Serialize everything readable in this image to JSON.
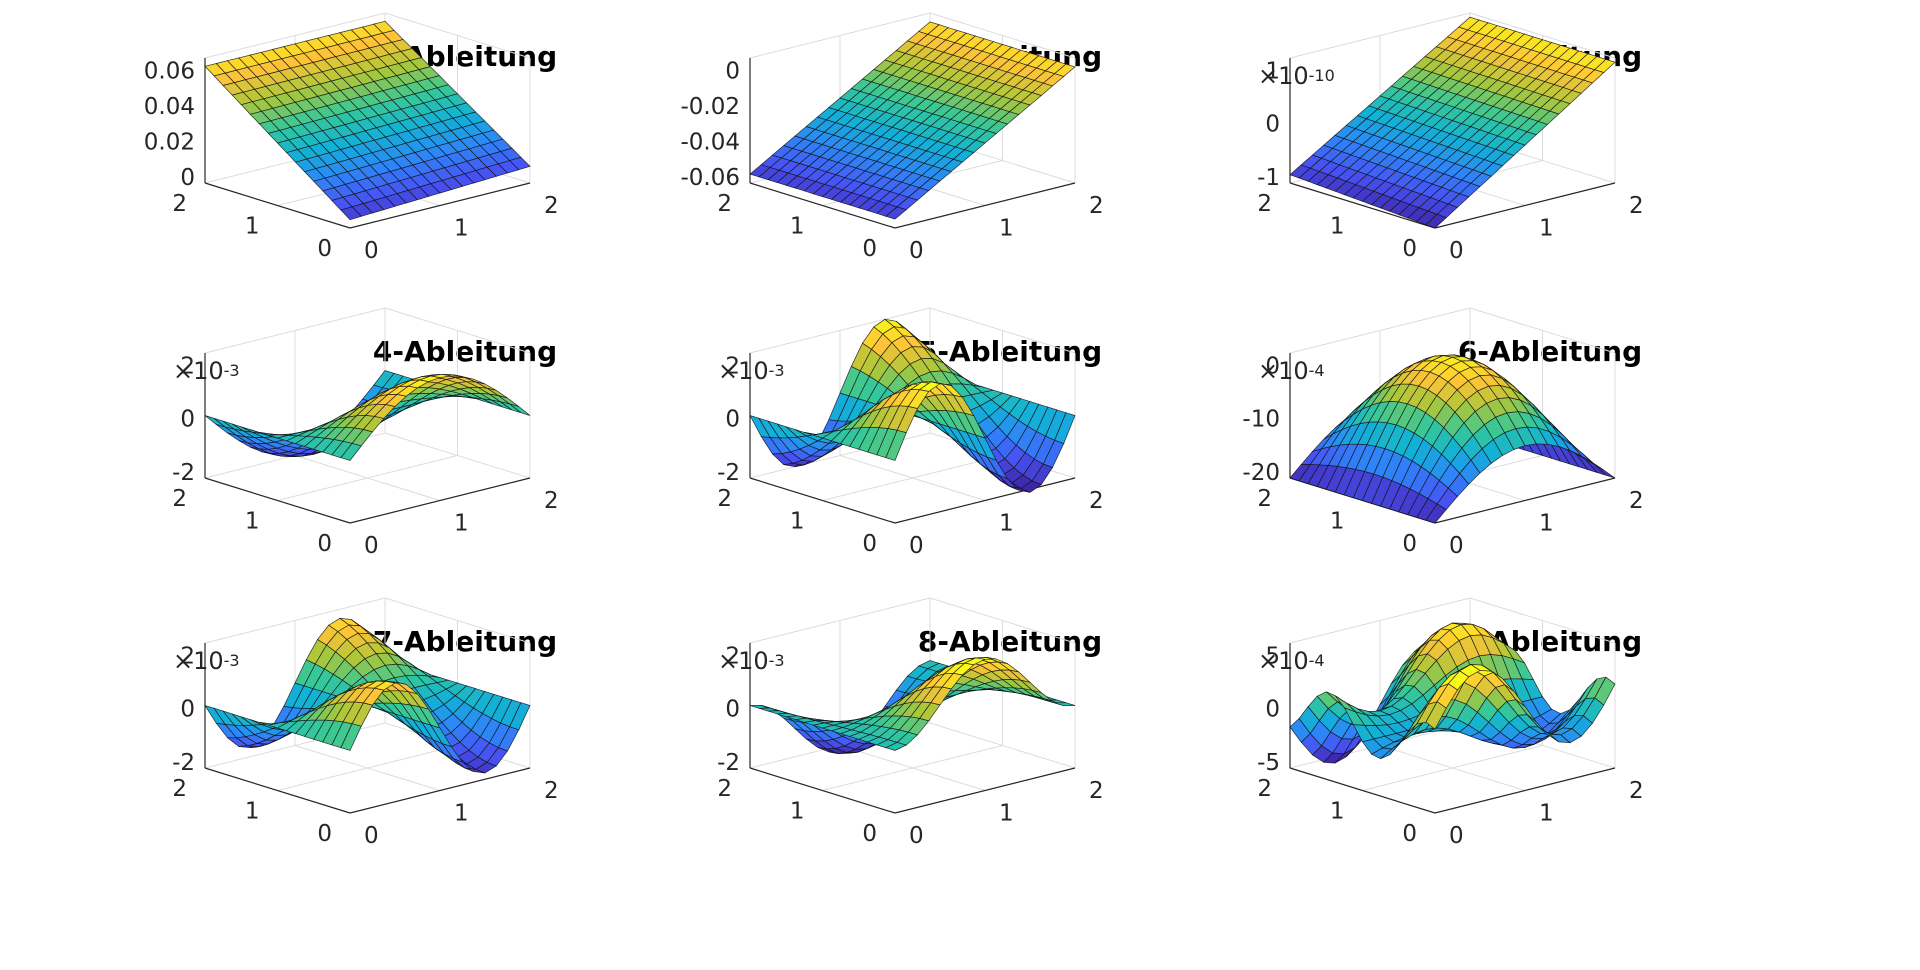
{
  "figure": {
    "panels": [
      {
        "title": "1-Ableitung",
        "exp_base": "",
        "exp_power": "",
        "zticks": [
          "0.06",
          "0.04",
          "0.02",
          "0"
        ],
        "yticks": [
          "2",
          "1",
          "0"
        ],
        "xticks": [
          "0",
          "1",
          "2"
        ]
      },
      {
        "title": "2-Ableitung",
        "exp_base": "",
        "exp_power": "",
        "zticks": [
          "0",
          "-0.02",
          "-0.04",
          "-0.06"
        ],
        "yticks": [
          "2",
          "1",
          "0"
        ],
        "xticks": [
          "0",
          "1",
          "2"
        ]
      },
      {
        "title": "3-Ableitung",
        "exp_base": "×10",
        "exp_power": "-10",
        "zticks": [
          "1",
          "0",
          "-1"
        ],
        "yticks": [
          "2",
          "1",
          "0"
        ],
        "xticks": [
          "0",
          "1",
          "2"
        ]
      },
      {
        "title": "4-Ableitung",
        "exp_base": "×10",
        "exp_power": "-3",
        "zticks": [
          "2",
          "0",
          "-2"
        ],
        "yticks": [
          "2",
          "1",
          "0"
        ],
        "xticks": [
          "0",
          "1",
          "2"
        ]
      },
      {
        "title": "5-Ableitung",
        "exp_base": "×10",
        "exp_power": "-3",
        "zticks": [
          "2",
          "0",
          "-2"
        ],
        "yticks": [
          "2",
          "1",
          "0"
        ],
        "xticks": [
          "0",
          "1",
          "2"
        ]
      },
      {
        "title": "6-Ableitung",
        "exp_base": "×10",
        "exp_power": "-4",
        "zticks": [
          "0",
          "-10",
          "-20"
        ],
        "yticks": [
          "2",
          "1",
          "0"
        ],
        "xticks": [
          "0",
          "1",
          "2"
        ]
      },
      {
        "title": "7-Ableitung",
        "exp_base": "×10",
        "exp_power": "-3",
        "zticks": [
          "2",
          "0",
          "-2"
        ],
        "yticks": [
          "2",
          "1",
          "0"
        ],
        "xticks": [
          "0",
          "1",
          "2"
        ]
      },
      {
        "title": "8-Ableitung",
        "exp_base": "×10",
        "exp_power": "-3",
        "zticks": [
          "2",
          "0",
          "-2"
        ],
        "yticks": [
          "2",
          "1",
          "0"
        ],
        "xticks": [
          "0",
          "1",
          "2"
        ]
      },
      {
        "title": "9-Ableitung",
        "exp_base": "×10",
        "exp_power": "-4",
        "zticks": [
          "5",
          "0",
          "-5"
        ],
        "yticks": [
          "2",
          "1",
          "0"
        ],
        "xticks": [
          "0",
          "1",
          "2"
        ]
      }
    ]
  },
  "chart_data": [
    {
      "type": "surface",
      "title": "1-Ableitung",
      "xlim": [
        0,
        2
      ],
      "ylim": [
        0,
        2
      ],
      "zlim": [
        -0.01,
        0.065
      ],
      "colormap": "parula",
      "shape": "plane",
      "z_at_corners": {
        "x0_y0": -0.005,
        "x2_y0": 0.0,
        "x0_y2": 0.06,
        "x2_y2": 0.06
      }
    },
    {
      "type": "surface",
      "title": "2-Ableitung",
      "xlim": [
        0,
        2
      ],
      "ylim": [
        0,
        2
      ],
      "zlim": [
        -0.065,
        0.005
      ],
      "colormap": "parula",
      "shape": "plane",
      "z_at_corners": {
        "x0_y0": -0.06,
        "x2_y0": 0.0,
        "x0_y2": -0.06,
        "x2_y2": 0.0
      }
    },
    {
      "type": "surface",
      "title": "3-Ableitung",
      "xlim": [
        0,
        2
      ],
      "ylim": [
        0,
        2
      ],
      "zlim": [
        -1.2e-10,
        1.8e-10
      ],
      "colormap": "parula",
      "shape": "plane",
      "z_at_corners": {
        "x0_y0": -1.2e-10,
        "x2_y0": 1.7e-10,
        "x0_y2": -1e-10,
        "x2_y2": 1.7e-10
      }
    },
    {
      "type": "surface",
      "title": "4-Ableitung",
      "xlim": [
        0,
        2
      ],
      "ylim": [
        0,
        2
      ],
      "zlim": [
        -0.0028,
        0.0032
      ],
      "colormap": "parula",
      "shape": "saddle",
      "z_range": [
        -0.0027,
        0.0031
      ]
    },
    {
      "type": "surface",
      "title": "5-Ableitung",
      "xlim": [
        0,
        2
      ],
      "ylim": [
        0,
        2
      ],
      "zlim": [
        -0.002,
        0.002
      ],
      "colormap": "parula",
      "shape": "wave",
      "z_range": [
        -0.0021,
        0.0021
      ]
    },
    {
      "type": "surface",
      "title": "6-Ableitung",
      "xlim": [
        0,
        2
      ],
      "ylim": [
        0,
        2
      ],
      "zlim": [
        -0.0021,
        0.0009
      ],
      "colormap": "parula",
      "shape": "dome",
      "z_range": [
        -0.0021,
        0.0008
      ]
    },
    {
      "type": "surface",
      "title": "7-Ableitung",
      "xlim": [
        0,
        2
      ],
      "ylim": [
        0,
        2
      ],
      "zlim": [
        -0.002,
        0.002
      ],
      "colormap": "parula",
      "shape": "wave",
      "z_range": [
        -0.0018,
        0.0018
      ]
    },
    {
      "type": "surface",
      "title": "8-Ableitung",
      "xlim": [
        0,
        2
      ],
      "ylim": [
        0,
        2
      ],
      "zlim": [
        -0.002,
        0.002
      ],
      "colormap": "parula",
      "shape": "peak",
      "z_range": [
        -0.0022,
        0.0022
      ]
    },
    {
      "type": "surface",
      "title": "9-Ableitung",
      "xlim": [
        0,
        2
      ],
      "ylim": [
        0,
        2
      ],
      "zlim": [
        -0.0006,
        0.0006
      ],
      "colormap": "parula",
      "shape": "double-wave",
      "z_range": [
        -0.0007,
        0.0007
      ]
    }
  ]
}
